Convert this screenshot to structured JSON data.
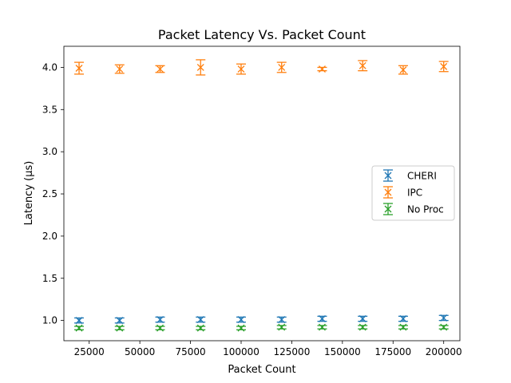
{
  "chart_data": {
    "type": "scatter",
    "title": "Packet Latency Vs. Packet Count",
    "xlabel": "Packet Count",
    "ylabel": "Latency (µs)",
    "xlim": [
      12500,
      208000
    ],
    "ylim": [
      0.76,
      4.25
    ],
    "x_ticks": [
      25000,
      50000,
      75000,
      100000,
      125000,
      150000,
      175000,
      200000
    ],
    "x_tick_labels": [
      "25000",
      "50000",
      "75000",
      "100000",
      "125000",
      "150000",
      "175000",
      "200000"
    ],
    "y_ticks": [
      1.0,
      1.5,
      2.0,
      2.5,
      3.0,
      3.5,
      4.0
    ],
    "y_tick_labels": [
      "1.0",
      "1.5",
      "2.0",
      "2.5",
      "3.0",
      "3.5",
      "4.0"
    ],
    "grid": false,
    "legend_position": "center-right",
    "marker": "x",
    "error_bars": true,
    "x": [
      20000,
      40000,
      60000,
      80000,
      100000,
      120000,
      140000,
      160000,
      180000,
      200000
    ],
    "series": [
      {
        "name": "CHERI",
        "color": "#1f77b4",
        "values": [
          1.0,
          1.0,
          1.01,
          1.01,
          1.01,
          1.01,
          1.02,
          1.02,
          1.02,
          1.03
        ],
        "errors": [
          0.03,
          0.03,
          0.03,
          0.03,
          0.03,
          0.03,
          0.03,
          0.03,
          0.03,
          0.03
        ]
      },
      {
        "name": "IPC",
        "color": "#ff7f0e",
        "values": [
          3.99,
          3.98,
          3.98,
          4.0,
          3.98,
          4.0,
          3.98,
          4.02,
          3.97,
          4.01
        ],
        "errors": [
          0.07,
          0.05,
          0.04,
          0.09,
          0.06,
          0.06,
          0.02,
          0.06,
          0.05,
          0.06
        ]
      },
      {
        "name": "No Proc",
        "color": "#2ca02c",
        "values": [
          0.91,
          0.91,
          0.91,
          0.91,
          0.91,
          0.92,
          0.92,
          0.92,
          0.92,
          0.92
        ],
        "errors": [
          0.02,
          0.02,
          0.02,
          0.02,
          0.02,
          0.02,
          0.02,
          0.02,
          0.02,
          0.02
        ]
      }
    ]
  }
}
